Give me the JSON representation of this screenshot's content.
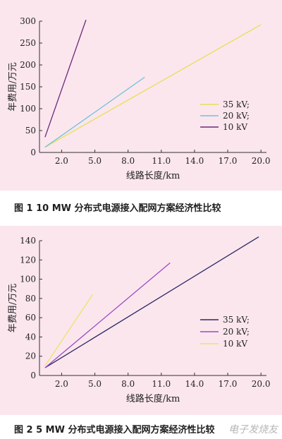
{
  "chart_data": [
    {
      "type": "line",
      "title": "",
      "xlabel": "线路长度/km",
      "ylabel": "年费用/万元",
      "xlim": [
        0,
        20.5
      ],
      "ylim": [
        0,
        300
      ],
      "xticks": [
        "2.0",
        "5.0",
        "8.0",
        "11.0",
        "14.0",
        "17.0",
        "20.0"
      ],
      "xtick_values": [
        2,
        5,
        8,
        11,
        14,
        17,
        20
      ],
      "yticks": [
        "0",
        "50",
        "100",
        "150",
        "200",
        "250",
        "300"
      ],
      "ytick_values": [
        0,
        50,
        100,
        150,
        200,
        250,
        300
      ],
      "legend": "right-middle",
      "grid": false,
      "series": [
        {
          "name": "35 kV;",
          "color": "#e7df55",
          "x": [
            0.5,
            20
          ],
          "y": [
            12,
            292
          ]
        },
        {
          "name": "20 kV;",
          "color": "#6fc3d8",
          "x": [
            0.5,
            9.5
          ],
          "y": [
            12,
            172
          ]
        },
        {
          "name": "10 kV",
          "color": "#6b2a78",
          "x": [
            0.5,
            4.2
          ],
          "y": [
            35,
            303
          ]
        }
      ]
    },
    {
      "type": "line",
      "title": "",
      "xlabel": "线路长度/km",
      "ylabel": "年费用/万元",
      "xlim": [
        0,
        20.5
      ],
      "ylim": [
        0,
        140
      ],
      "xticks": [
        "2.0",
        "5.0",
        "8.0",
        "11.0",
        "14.0",
        "17.0",
        "20.0"
      ],
      "xtick_values": [
        2,
        5,
        8,
        11,
        14,
        17,
        20
      ],
      "yticks": [
        "0",
        "20",
        "40",
        "60",
        "80",
        "100",
        "120",
        "140"
      ],
      "ytick_values": [
        0,
        20,
        40,
        60,
        80,
        100,
        120,
        140
      ],
      "legend": "right-middle",
      "grid": false,
      "series": [
        {
          "name": "35 kV;",
          "color": "#2b2960",
          "x": [
            0.5,
            19.8
          ],
          "y": [
            8,
            144
          ]
        },
        {
          "name": "20 kV;",
          "color": "#9a4cc2",
          "x": [
            0.5,
            11.8
          ],
          "y": [
            8,
            117
          ]
        },
        {
          "name": "10 kV",
          "color": "#ece36a",
          "x": [
            0.5,
            4.8
          ],
          "y": [
            10,
            84
          ]
        }
      ]
    }
  ],
  "captions": [
    "图 1   10 MW 分布式电源接入配网方案经济性比较",
    "图 2   5 MW 分布式电源接入配网方案经济性比较"
  ],
  "watermark": "电子发烧友"
}
